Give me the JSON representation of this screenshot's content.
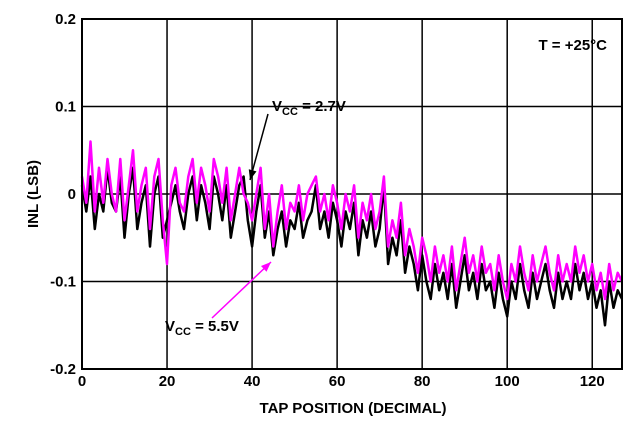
{
  "chart_data": {
    "type": "line",
    "xlabel": "TAP POSITION (DECIMAL)",
    "ylabel": "INL (LSB)",
    "xlim": [
      0,
      127
    ],
    "ylim": [
      -0.2,
      0.2
    ],
    "xticks": [
      0,
      20,
      40,
      60,
      80,
      100,
      120
    ],
    "xtick_labels": [
      "0",
      "20",
      "40",
      "60",
      "80",
      "100",
      "120"
    ],
    "yticks": [
      -0.2,
      -0.1,
      0,
      0.1,
      0.2
    ],
    "ytick_labels": [
      "-0.2",
      "-0.1",
      "0",
      "0.1",
      "0.2"
    ],
    "grid": true,
    "condition": "T = +25°C",
    "series": [
      {
        "name": "VCC = 2.7V",
        "label_main": "V",
        "label_sub": "CC",
        "label_rest": " = 2.7V",
        "color": "#000000",
        "x": [
          0,
          1,
          2,
          3,
          4,
          5,
          6,
          7,
          8,
          9,
          10,
          11,
          12,
          13,
          14,
          15,
          16,
          17,
          18,
          19,
          20,
          21,
          22,
          23,
          24,
          25,
          26,
          27,
          28,
          29,
          30,
          31,
          32,
          33,
          34,
          35,
          36,
          37,
          38,
          39,
          40,
          41,
          42,
          43,
          44,
          45,
          46,
          47,
          48,
          49,
          50,
          51,
          52,
          53,
          54,
          55,
          56,
          57,
          58,
          59,
          60,
          61,
          62,
          63,
          64,
          65,
          66,
          67,
          68,
          69,
          70,
          71,
          72,
          73,
          74,
          75,
          76,
          77,
          78,
          79,
          80,
          81,
          82,
          83,
          84,
          85,
          86,
          87,
          88,
          89,
          90,
          91,
          92,
          93,
          94,
          95,
          96,
          97,
          98,
          99,
          100,
          101,
          102,
          103,
          104,
          105,
          106,
          107,
          108,
          109,
          110,
          111,
          112,
          113,
          114,
          115,
          116,
          117,
          118,
          119,
          120,
          121,
          122,
          123,
          124,
          125,
          126,
          127
        ],
        "values": [
          0.01,
          -0.02,
          0.02,
          -0.04,
          0.0,
          -0.02,
          0.03,
          -0.01,
          -0.02,
          0.02,
          -0.05,
          0.0,
          0.03,
          -0.04,
          -0.01,
          0.01,
          -0.06,
          0.0,
          0.02,
          -0.05,
          -0.03,
          -0.01,
          0.01,
          -0.02,
          -0.04,
          0.0,
          0.02,
          -0.03,
          0.01,
          -0.01,
          -0.04,
          0.02,
          0.0,
          -0.03,
          0.01,
          -0.05,
          -0.02,
          0.01,
          0.02,
          -0.03,
          -0.06,
          -0.02,
          0.01,
          -0.05,
          -0.02,
          -0.07,
          -0.04,
          -0.02,
          -0.06,
          -0.03,
          -0.04,
          -0.01,
          -0.05,
          -0.03,
          -0.02,
          0.01,
          -0.04,
          -0.02,
          -0.05,
          -0.01,
          -0.03,
          -0.06,
          -0.02,
          -0.04,
          -0.01,
          -0.07,
          -0.03,
          -0.05,
          -0.02,
          -0.06,
          -0.04,
          0.01,
          -0.08,
          -0.05,
          -0.07,
          -0.03,
          -0.09,
          -0.06,
          -0.08,
          -0.11,
          -0.07,
          -0.1,
          -0.12,
          -0.08,
          -0.11,
          -0.09,
          -0.12,
          -0.08,
          -0.13,
          -0.1,
          -0.07,
          -0.11,
          -0.09,
          -0.12,
          -0.08,
          -0.11,
          -0.1,
          -0.13,
          -0.09,
          -0.12,
          -0.14,
          -0.1,
          -0.12,
          -0.08,
          -0.11,
          -0.13,
          -0.09,
          -0.12,
          -0.1,
          -0.08,
          -0.11,
          -0.13,
          -0.09,
          -0.12,
          -0.1,
          -0.12,
          -0.08,
          -0.11,
          -0.09,
          -0.12,
          -0.1,
          -0.13,
          -0.11,
          -0.15,
          -0.1,
          -0.13,
          -0.11,
          -0.12
        ]
      },
      {
        "name": "VCC = 5.5V",
        "label_main": "V",
        "label_sub": "CC",
        "label_rest": " = 5.5V",
        "color": "#ff00ff",
        "x": [
          0,
          1,
          2,
          3,
          4,
          5,
          6,
          7,
          8,
          9,
          10,
          11,
          12,
          13,
          14,
          15,
          16,
          17,
          18,
          19,
          20,
          21,
          22,
          23,
          24,
          25,
          26,
          27,
          28,
          29,
          30,
          31,
          32,
          33,
          34,
          35,
          36,
          37,
          38,
          39,
          40,
          41,
          42,
          43,
          44,
          45,
          46,
          47,
          48,
          49,
          50,
          51,
          52,
          53,
          54,
          55,
          56,
          57,
          58,
          59,
          60,
          61,
          62,
          63,
          64,
          65,
          66,
          67,
          68,
          69,
          70,
          71,
          72,
          73,
          74,
          75,
          76,
          77,
          78,
          79,
          80,
          81,
          82,
          83,
          84,
          85,
          86,
          87,
          88,
          89,
          90,
          91,
          92,
          93,
          94,
          95,
          96,
          97,
          98,
          99,
          100,
          101,
          102,
          103,
          104,
          105,
          106,
          107,
          108,
          109,
          110,
          111,
          112,
          113,
          114,
          115,
          116,
          117,
          118,
          119,
          120,
          121,
          122,
          123,
          124,
          125,
          126,
          127
        ],
        "values": [
          0.02,
          -0.01,
          0.06,
          -0.02,
          0.03,
          -0.01,
          0.04,
          0.0,
          -0.02,
          0.04,
          -0.03,
          0.01,
          0.05,
          -0.02,
          0.01,
          0.03,
          -0.04,
          0.02,
          0.04,
          -0.03,
          -0.08,
          0.01,
          0.03,
          -0.01,
          -0.02,
          0.02,
          0.04,
          -0.01,
          0.03,
          0.01,
          -0.02,
          0.04,
          0.02,
          -0.01,
          0.03,
          -0.03,
          0.0,
          0.03,
          0.0,
          -0.01,
          -0.03,
          0.0,
          0.03,
          -0.04,
          0.0,
          -0.06,
          -0.02,
          0.01,
          -0.04,
          -0.01,
          -0.02,
          0.01,
          -0.03,
          0.0,
          0.01,
          0.02,
          -0.02,
          0.0,
          -0.03,
          0.01,
          -0.01,
          -0.04,
          0.0,
          -0.02,
          0.01,
          -0.05,
          -0.01,
          -0.03,
          0.0,
          -0.04,
          -0.02,
          0.02,
          -0.06,
          -0.03,
          -0.05,
          -0.01,
          -0.07,
          -0.04,
          -0.06,
          -0.09,
          -0.05,
          -0.07,
          -0.1,
          -0.06,
          -0.09,
          -0.07,
          -0.1,
          -0.06,
          -0.11,
          -0.08,
          -0.05,
          -0.09,
          -0.07,
          -0.1,
          -0.06,
          -0.09,
          -0.08,
          -0.11,
          -0.07,
          -0.1,
          -0.12,
          -0.08,
          -0.1,
          -0.06,
          -0.09,
          -0.11,
          -0.07,
          -0.1,
          -0.08,
          -0.06,
          -0.09,
          -0.11,
          -0.07,
          -0.1,
          -0.08,
          -0.1,
          -0.06,
          -0.09,
          -0.07,
          -0.1,
          -0.08,
          -0.11,
          -0.09,
          -0.12,
          -0.08,
          -0.11,
          -0.09,
          -0.1
        ]
      }
    ]
  }
}
